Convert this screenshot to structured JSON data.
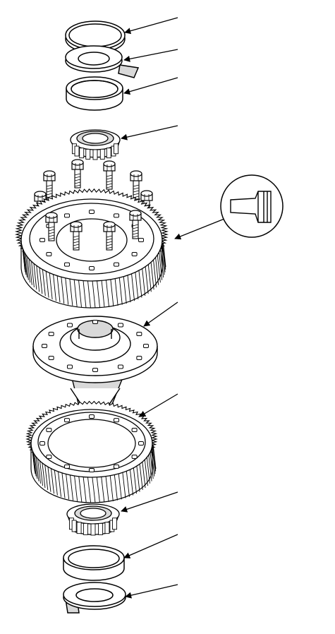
{
  "diagram": {
    "view": "exploded-view",
    "line_color": "#000000",
    "fill_color": "#ffffff",
    "shade_color": "#d9d9d9",
    "parts": [
      {
        "id": "upper-bearing-outer-race-ring",
        "callout": true
      },
      {
        "id": "upper-shim",
        "callout": true
      },
      {
        "id": "upper-bearing-outer-race",
        "callout": true
      },
      {
        "id": "upper-tapered-roller-bearing",
        "callout": true
      },
      {
        "id": "final-driven-gear-bolts",
        "callout": false
      },
      {
        "id": "final-driven-gear",
        "callout": true
      },
      {
        "id": "differential-carrier",
        "callout": true
      },
      {
        "id": "park-gear",
        "callout": true
      },
      {
        "id": "lower-tapered-roller-bearing",
        "callout": true
      },
      {
        "id": "lower-bearing-outer-race",
        "callout": true
      },
      {
        "id": "lower-shim",
        "callout": true
      }
    ],
    "inset": {
      "icon": "grease-icon",
      "points_to": "final-driven-gear"
    }
  }
}
